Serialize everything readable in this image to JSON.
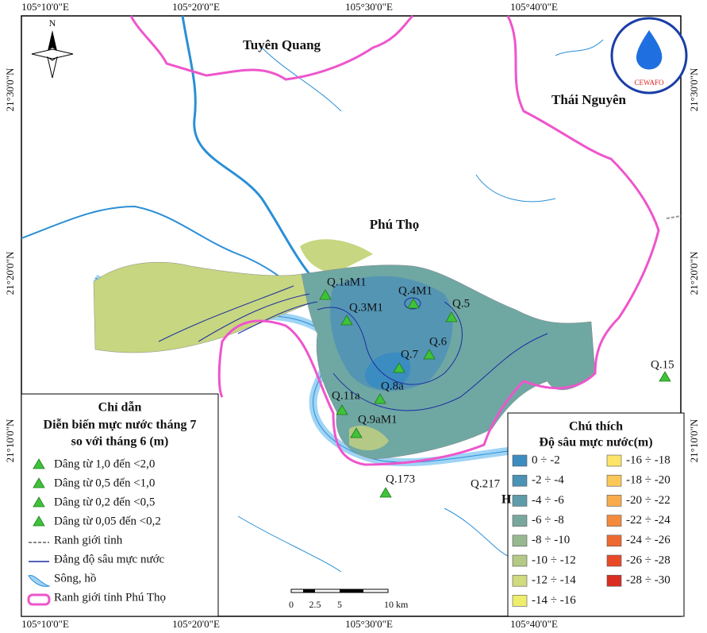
{
  "coordinates": {
    "top": [
      "105°10'0\"E",
      "105°20'0\"E",
      "105°30'0\"E",
      "105°40'0\"E"
    ],
    "bottom": [
      "105°10'0\"E",
      "105°20'0\"E",
      "105°30'0\"E",
      "105°40'0\"E"
    ],
    "left": [
      "21°30'0\"N",
      "21°20'0\"N",
      "21°10'0\"N"
    ],
    "right": [
      "21°30'0\"N",
      "21°20'0\"N",
      "21°10'0\"N"
    ]
  },
  "north_arrow": "N",
  "logo": "CEWAFO",
  "provinces": [
    "Tuyên Quang",
    "Thái Nguyên",
    "Phú Thọ"
  ],
  "partial_label": "H",
  "stations": [
    "Q.1aM1",
    "Q.3M1",
    "Q.4M1",
    "Q.5",
    "Q.6",
    "Q.7",
    "Q.8a",
    "Q.11a",
    "Q.9aM1",
    "Q.173",
    "Q.217",
    "Q.15"
  ],
  "legend_left": {
    "title": "Chỉ dẫn",
    "subtitle_lines": [
      "Diễn biến mực nước tháng 7",
      "so với tháng 6 (m)"
    ],
    "items": [
      "Dâng từ 1,0 đến <2,0",
      "Dâng từ 0,5 đến <1,0",
      "Dâng từ 0,2 đến <0,5",
      "Dâng từ 0,05 đến <0,2",
      "Ranh giới tỉnh",
      "Đẳng độ sâu mực nước",
      "Sông, hồ",
      "Ranh giới tỉnh Phú Thọ"
    ]
  },
  "legend_right": {
    "title": "Chú thích",
    "subtitle": "Độ sâu mực nước(m)",
    "classes": [
      {
        "label": "0 ÷ -2",
        "color": "#3b8cc0"
      },
      {
        "label": "-2 ÷ -4",
        "color": "#4b93b5"
      },
      {
        "label": "-4 ÷ -6",
        "color": "#5f9ca9"
      },
      {
        "label": "-6 ÷ -8",
        "color": "#78a89d"
      },
      {
        "label": "-8 ÷ -10",
        "color": "#98b98f"
      },
      {
        "label": "-10 ÷ -12",
        "color": "#b4c985"
      },
      {
        "label": "-12 ÷ -14",
        "color": "#d0da7e"
      },
      {
        "label": "-14 ÷ -16",
        "color": "#efee6c"
      },
      {
        "label": "-16 ÷ -18",
        "color": "#fde468"
      },
      {
        "label": "-18 ÷ -20",
        "color": "#fbc858"
      },
      {
        "label": "-20 ÷ -22",
        "color": "#f8ab4b"
      },
      {
        "label": "-22 ÷ -24",
        "color": "#f38a3c"
      },
      {
        "label": "-24 ÷ -26",
        "color": "#ee6a30"
      },
      {
        "label": "-26 ÷ -28",
        "color": "#e84a28"
      },
      {
        "label": "-28 ÷ -30",
        "color": "#d92d20"
      }
    ]
  },
  "scale_bar": {
    "labels": [
      "0",
      "2.5",
      "5",
      "10 km"
    ]
  }
}
